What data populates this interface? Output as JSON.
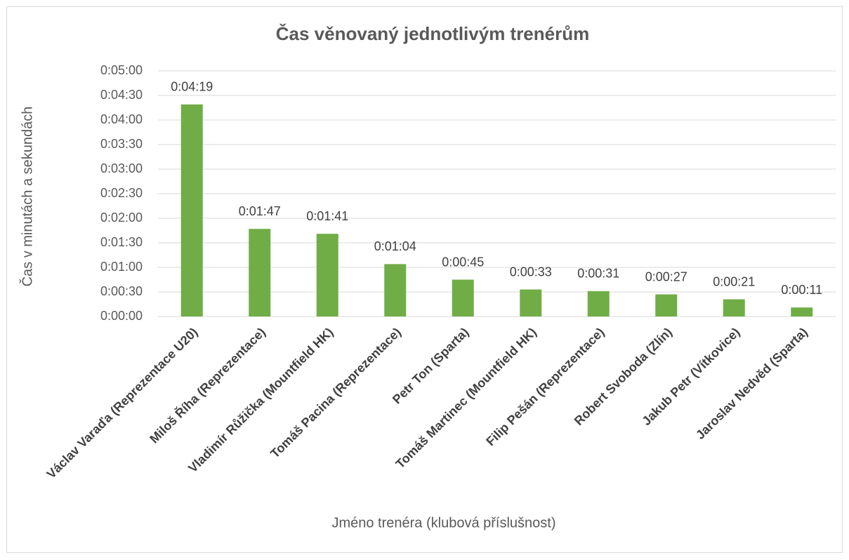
{
  "chart_data": {
    "type": "bar",
    "title": "Čas věnovaný jednotlivým trenérům",
    "x_label": "Jméno trenéra (klubová příslušnost)",
    "y_label": "Čas v minutách a sekundách",
    "categories": [
      "Václav Varaďa (Reprezentace U20)",
      "Miloš Říha (Reprezentace)",
      "Vladimír Růžička (Mountfield HK)",
      "Tomáš Pacina (Reprezentace)",
      "Petr Ton (Sparta)",
      "Tomáš Martinec (Mountfield HK)",
      "Filip Pešán (Reprezentace)",
      "Robert Svoboda (Zlín)",
      "Jakub Petr (Vítkovice)",
      "Jaroslav Nedvěd (Sparta)"
    ],
    "values": [
      259,
      107,
      101,
      64,
      45,
      33,
      31,
      27,
      21,
      11
    ],
    "value_labels": [
      "0:04:19",
      "0:01:47",
      "0:01:41",
      "0:01:04",
      "0:00:45",
      "0:00:33",
      "0:00:31",
      "0:00:27",
      "0:00:21",
      "0:00:11"
    ],
    "color": "#70ad47",
    "ylim": [
      0,
      300
    ],
    "yticks": [
      {
        "value": 0,
        "label": "0:00:00"
      },
      {
        "value": 30,
        "label": "0:00:30"
      },
      {
        "value": 60,
        "label": "0:01:00"
      },
      {
        "value": 90,
        "label": "0:01:30"
      },
      {
        "value": 120,
        "label": "0:02:00"
      },
      {
        "value": 150,
        "label": "0:02:30"
      },
      {
        "value": 180,
        "label": "0:03:00"
      },
      {
        "value": 210,
        "label": "0:03:30"
      },
      {
        "value": 240,
        "label": "0:04:00"
      },
      {
        "value": 270,
        "label": "0:04:30"
      },
      {
        "value": 300,
        "label": "0:05:00"
      }
    ],
    "grid": true
  }
}
